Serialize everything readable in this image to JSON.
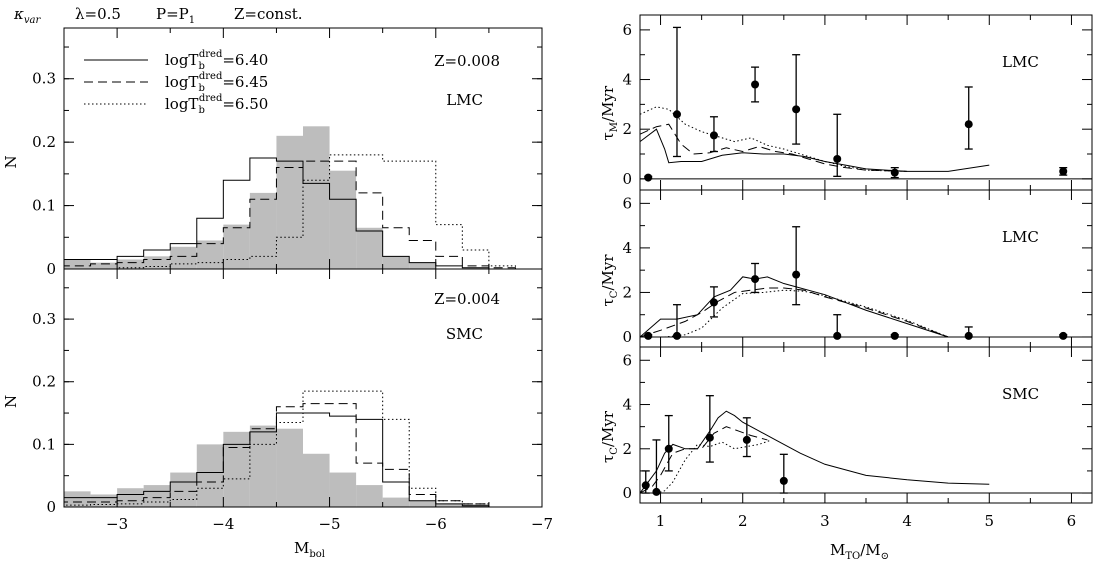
{
  "header": {
    "kappa": "κ",
    "kappa_sub": "var",
    "lambda": "λ=0.5",
    "p": "P=P",
    "p_sub": "1",
    "z": "Z=const."
  },
  "chart_data": [
    {
      "id": "hist-lmc",
      "type": "histogram",
      "panel_labels": [
        "Z=0.008",
        "LMC"
      ],
      "ylabel": "N",
      "xlabel": "",
      "xlim": [
        -2.5,
        -7
      ],
      "ylim": [
        0,
        0.38
      ],
      "yticks": [
        0,
        0.1,
        0.2,
        0.3
      ],
      "bin_edges": [
        -2.5,
        -2.75,
        -3,
        -3.25,
        -3.5,
        -3.75,
        -4,
        -4.25,
        -4.5,
        -4.75,
        -5,
        -5.25,
        -5.5,
        -5.75,
        -6,
        -6.25,
        -6.5,
        -6.75
      ],
      "legend": [
        {
          "label": "logT",
          "sub": "b",
          "sup": "dred",
          "value": "=6.40",
          "style": "solid"
        },
        {
          "label": "logT",
          "sub": "b",
          "sup": "dred",
          "value": "=6.45",
          "style": "dashed"
        },
        {
          "label": "logT",
          "sub": "b",
          "sup": "dred",
          "value": "=6.50",
          "style": "dotted"
        }
      ],
      "series": [
        {
          "name": "observed",
          "style": "filled",
          "color": "#bdbdbd",
          "values": [
            0.015,
            0.01,
            0.015,
            0.02,
            0.035,
            0.045,
            0.07,
            0.12,
            0.21,
            0.225,
            0.155,
            0.065,
            0.02,
            0.01,
            0,
            0,
            0
          ]
        },
        {
          "name": "logTb=6.40",
          "style": "solid",
          "values": [
            0.015,
            0.015,
            0.02,
            0.03,
            0.04,
            0.08,
            0.14,
            0.175,
            0.17,
            0.135,
            0.11,
            0.06,
            0.02,
            0.01,
            0.005,
            0.002,
            0
          ]
        },
        {
          "name": "logTb=6.45",
          "style": "dashed",
          "values": [
            0.005,
            0.008,
            0.01,
            0.015,
            0.02,
            0.04,
            0.065,
            0.11,
            0.16,
            0.17,
            0.17,
            0.12,
            0.065,
            0.045,
            0.02,
            0.005,
            0.002
          ]
        },
        {
          "name": "logTb=6.50",
          "style": "dotted",
          "values": [
            0,
            0,
            0.002,
            0.004,
            0.008,
            0.01,
            0.015,
            0.02,
            0.05,
            0.14,
            0.18,
            0.18,
            0.17,
            0.17,
            0.07,
            0.03,
            0.005
          ]
        }
      ]
    },
    {
      "id": "hist-smc",
      "type": "histogram",
      "panel_labels": [
        "Z=0.004",
        "SMC"
      ],
      "ylabel": "N",
      "xlabel": "M",
      "xlabel_sub": "bol",
      "xlim": [
        -2.5,
        -7
      ],
      "ylim": [
        0,
        0.38
      ],
      "yticks": [
        0,
        0.1,
        0.2,
        0.3
      ],
      "xticks": [
        -3,
        -4,
        -5,
        -6,
        -7
      ],
      "bin_edges": [
        -2.5,
        -2.75,
        -3,
        -3.25,
        -3.5,
        -3.75,
        -4,
        -4.25,
        -4.5,
        -4.75,
        -5,
        -5.25,
        -5.5,
        -5.75,
        -6,
        -6.25,
        -6.5,
        -6.75
      ],
      "series": [
        {
          "name": "observed",
          "style": "filled",
          "color": "#bdbdbd",
          "values": [
            0.025,
            0.02,
            0.03,
            0.035,
            0.055,
            0.1,
            0.12,
            0.13,
            0.125,
            0.085,
            0.055,
            0.035,
            0.015,
            0.01,
            0.005,
            0.005,
            0
          ]
        },
        {
          "name": "logTb=6.40",
          "style": "solid",
          "values": [
            0.015,
            0.015,
            0.02,
            0.025,
            0.04,
            0.055,
            0.1,
            0.12,
            0.15,
            0.15,
            0.145,
            0.14,
            0.04,
            0.01,
            0.005,
            0.002,
            0
          ]
        },
        {
          "name": "logTb=6.45",
          "style": "dashed",
          "values": [
            0.008,
            0.008,
            0.01,
            0.015,
            0.025,
            0.04,
            0.095,
            0.125,
            0.16,
            0.165,
            0.165,
            0.07,
            0.06,
            0.02,
            0.01,
            0.005,
            0
          ]
        },
        {
          "name": "logTb=6.50",
          "style": "dotted",
          "values": [
            0.003,
            0.004,
            0.005,
            0.008,
            0.012,
            0.03,
            0.045,
            0.1,
            0.135,
            0.185,
            0.185,
            0.185,
            0.14,
            0.03,
            0.01,
            0.005,
            0
          ]
        }
      ]
    },
    {
      "id": "tau-m-lmc",
      "type": "line",
      "panel_label": "LMC",
      "ylabel_sym": "τ",
      "ylabel_sub": "M",
      "ylabel_rest": "/Myr",
      "xlim": [
        0.75,
        6.25
      ],
      "ylim": [
        -0.45,
        6.6
      ],
      "yticks": [
        0,
        2,
        4,
        6
      ],
      "points": [
        {
          "x": 0.85,
          "y": 0.05,
          "lo": 0,
          "hi": 0.1
        },
        {
          "x": 1.2,
          "y": 2.6,
          "lo": 0.9,
          "hi": 6.1
        },
        {
          "x": 1.65,
          "y": 1.75,
          "lo": 1.1,
          "hi": 2.5
        },
        {
          "x": 2.15,
          "y": 3.8,
          "lo": 3.1,
          "hi": 4.5
        },
        {
          "x": 2.65,
          "y": 2.8,
          "lo": 1.4,
          "hi": 5.0
        },
        {
          "x": 3.15,
          "y": 0.8,
          "lo": 0.1,
          "hi": 2.6
        },
        {
          "x": 3.85,
          "y": 0.25,
          "lo": 0.05,
          "hi": 0.45
        },
        {
          "x": 4.75,
          "y": 2.2,
          "lo": 1.2,
          "hi": 3.7
        },
        {
          "x": 5.9,
          "y": 0.3,
          "lo": 0.15,
          "hi": 0.45
        }
      ],
      "series": [
        {
          "name": "logTb=6.40",
          "style": "solid",
          "x": [
            0.75,
            0.95,
            1.05,
            1.1,
            1.25,
            1.5,
            1.75,
            2.0,
            2.25,
            2.5,
            2.75,
            3.0,
            3.25,
            3.5,
            4.0,
            4.5,
            5.0
          ],
          "y": [
            1.5,
            2.0,
            1.2,
            0.65,
            0.7,
            0.7,
            0.95,
            1.05,
            1.0,
            1.0,
            0.9,
            0.7,
            0.55,
            0.4,
            0.3,
            0.3,
            0.55
          ]
        },
        {
          "name": "logTb=6.45",
          "style": "dashed",
          "x": [
            0.75,
            0.95,
            1.1,
            1.25,
            1.4,
            1.6,
            1.8,
            2.0,
            2.2,
            2.4,
            2.6,
            2.8,
            3.0,
            3.25,
            3.5,
            4.0
          ],
          "y": [
            1.8,
            2.1,
            2.2,
            1.4,
            1.0,
            1.05,
            1.25,
            1.1,
            1.3,
            1.1,
            1.0,
            0.8,
            0.6,
            0.45,
            0.35,
            0.3
          ]
        },
        {
          "name": "logTb=6.50",
          "style": "dotted",
          "x": [
            0.75,
            0.95,
            1.1,
            1.2,
            1.3,
            1.5,
            1.7,
            1.9,
            2.1,
            2.3,
            2.5,
            2.7,
            3.0,
            3.25,
            3.5,
            4.0
          ],
          "y": [
            2.6,
            2.9,
            2.8,
            2.5,
            2.2,
            1.9,
            1.7,
            1.5,
            1.65,
            1.35,
            1.2,
            1.0,
            0.7,
            0.5,
            0.35,
            0.3
          ]
        }
      ]
    },
    {
      "id": "tau-c-lmc",
      "type": "line",
      "panel_label": "LMC",
      "ylabel_sym": "τ",
      "ylabel_sub": "C",
      "ylabel_rest": "/Myr",
      "xlim": [
        0.75,
        6.25
      ],
      "ylim": [
        -0.45,
        6.6
      ],
      "yticks": [
        0,
        2,
        4,
        6
      ],
      "points": [
        {
          "x": 0.85,
          "y": 0.05,
          "lo": 0,
          "hi": 0.1
        },
        {
          "x": 1.2,
          "y": 0.05,
          "lo": 0,
          "hi": 1.45
        },
        {
          "x": 1.65,
          "y": 1.55,
          "lo": 0.9,
          "hi": 2.25
        },
        {
          "x": 2.15,
          "y": 2.6,
          "lo": 2.0,
          "hi": 3.3
        },
        {
          "x": 2.65,
          "y": 2.8,
          "lo": 1.45,
          "hi": 4.95
        },
        {
          "x": 3.15,
          "y": 0.05,
          "lo": 0,
          "hi": 1.0
        },
        {
          "x": 3.85,
          "y": 0.05,
          "lo": 0,
          "hi": 0.1
        },
        {
          "x": 4.75,
          "y": 0.05,
          "lo": 0,
          "hi": 0.45
        },
        {
          "x": 5.9,
          "y": 0.05,
          "lo": 0,
          "hi": 0.1
        }
      ],
      "series": [
        {
          "name": "logTb=6.40",
          "style": "solid",
          "x": [
            0.75,
            1.0,
            1.2,
            1.45,
            1.65,
            1.85,
            2.0,
            2.15,
            2.3,
            2.5,
            3.0,
            3.5,
            4.0,
            4.5
          ],
          "y": [
            0,
            0.8,
            0.8,
            1.0,
            1.8,
            2.1,
            2.7,
            2.6,
            2.7,
            2.4,
            1.9,
            1.2,
            0.6,
            0.0
          ]
        },
        {
          "name": "logTb=6.45",
          "style": "dashed",
          "x": [
            0.75,
            1.0,
            1.3,
            1.5,
            1.7,
            1.9,
            2.1,
            2.3,
            2.5,
            2.75,
            3.0,
            3.5,
            4.0,
            4.5
          ],
          "y": [
            0,
            0.3,
            0.7,
            1.1,
            1.6,
            2.0,
            2.1,
            2.2,
            2.2,
            2.1,
            1.8,
            1.3,
            0.7,
            0.0
          ]
        },
        {
          "name": "logTb=6.50",
          "style": "dotted",
          "x": [
            0.75,
            1.05,
            1.3,
            1.5,
            1.75,
            2.0,
            2.25,
            2.5,
            2.75,
            3.0,
            3.5,
            4.0,
            4.5
          ],
          "y": [
            0,
            0,
            0.1,
            0.4,
            1.3,
            1.95,
            2.0,
            2.1,
            2.05,
            1.85,
            1.35,
            0.75,
            0.0
          ]
        }
      ]
    },
    {
      "id": "tau-c-smc",
      "type": "line",
      "panel_label": "SMC",
      "ylabel_sym": "τ",
      "ylabel_sub": "C",
      "ylabel_rest": "/Myr",
      "xlabel": "M",
      "xlabel_sub": "TO",
      "xlabel_rest": "/M",
      "xlabel_sub2": "⊙",
      "xlim": [
        0.75,
        6.25
      ],
      "ylim": [
        -0.45,
        6.6
      ],
      "yticks": [
        0,
        2,
        4,
        6
      ],
      "xticks": [
        1,
        2,
        3,
        4,
        5,
        6
      ],
      "points": [
        {
          "x": 0.82,
          "y": 0.35,
          "lo": 0,
          "hi": 1.0
        },
        {
          "x": 0.95,
          "y": 0.05,
          "lo": 0,
          "hi": 2.4
        },
        {
          "x": 1.1,
          "y": 2.0,
          "lo": 1.0,
          "hi": 3.5
        },
        {
          "x": 1.6,
          "y": 2.5,
          "lo": 1.4,
          "hi": 4.4
        },
        {
          "x": 2.05,
          "y": 2.4,
          "lo": 1.65,
          "hi": 3.4
        },
        {
          "x": 2.5,
          "y": 0.55,
          "lo": 0,
          "hi": 1.75
        }
      ],
      "series": [
        {
          "name": "logTb=6.40",
          "style": "solid",
          "x": [
            0.75,
            0.85,
            0.95,
            1.05,
            1.15,
            1.3,
            1.45,
            1.6,
            1.7,
            1.8,
            1.9,
            2.0,
            2.2,
            2.4,
            2.7,
            3.0,
            3.5,
            4.0,
            4.5,
            5.0
          ],
          "y": [
            0,
            0.5,
            1.0,
            1.8,
            2.2,
            2.0,
            2.0,
            2.8,
            3.4,
            3.7,
            3.5,
            3.2,
            2.8,
            2.4,
            1.8,
            1.3,
            0.8,
            0.6,
            0.45,
            0.4
          ]
        },
        {
          "name": "logTb=6.45",
          "style": "dashed",
          "x": [
            0.75,
            0.9,
            1.0,
            1.15,
            1.3,
            1.5,
            1.65,
            1.8,
            1.95,
            2.1,
            2.3
          ],
          "y": [
            0,
            0.3,
            0.8,
            1.8,
            2.0,
            2.0,
            2.7,
            3.0,
            2.8,
            2.6,
            2.4
          ]
        },
        {
          "name": "logTb=6.50",
          "style": "dotted",
          "x": [
            0.75,
            0.95,
            1.05,
            1.15,
            1.3,
            1.45,
            1.6,
            1.75,
            1.9,
            2.05,
            2.2,
            2.35
          ],
          "y": [
            0,
            0,
            0.1,
            0.5,
            1.5,
            2.2,
            2.1,
            2.3,
            2.0,
            2.1,
            2.2,
            2.4
          ]
        }
      ]
    }
  ]
}
